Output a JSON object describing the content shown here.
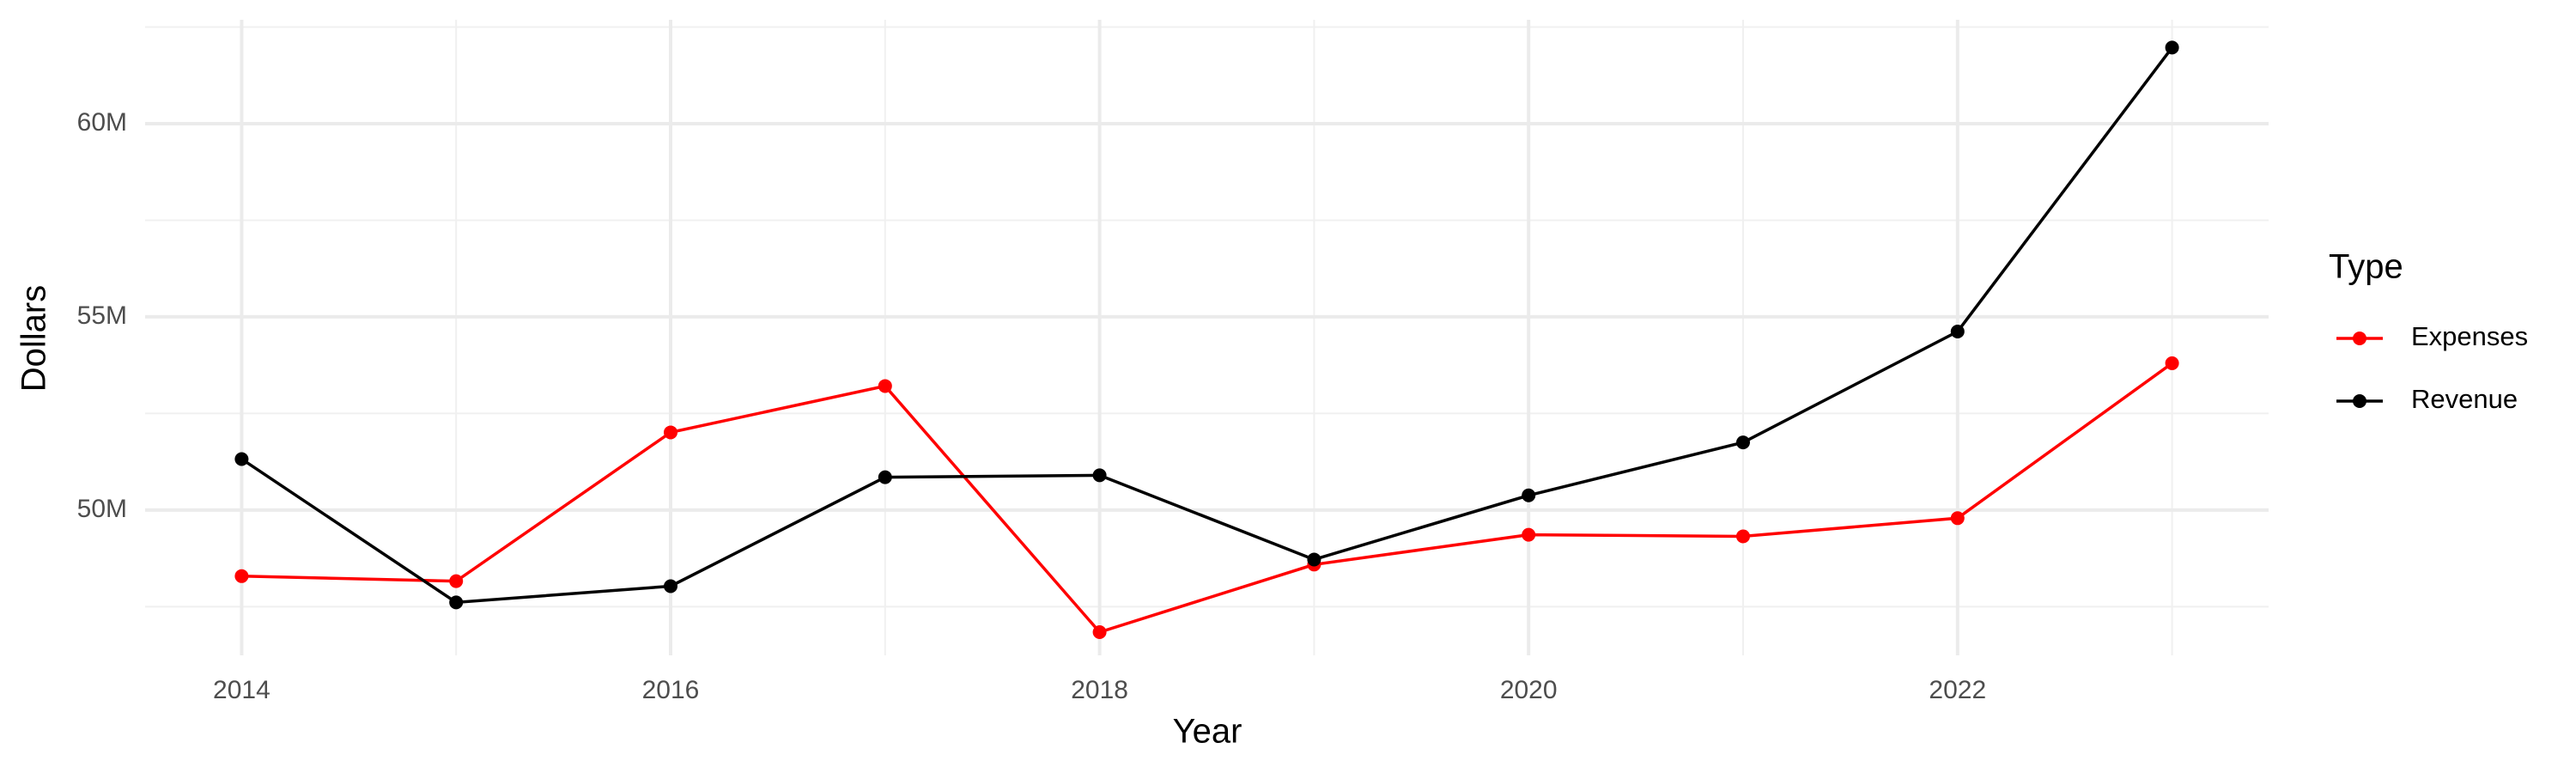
{
  "chart_data": {
    "type": "line",
    "x_label": "Year",
    "y_label": "Dollars",
    "legend_title": "Type",
    "x": [
      2014,
      2015,
      2016,
      2017,
      2018,
      2019,
      2020,
      2021,
      2022,
      2023
    ],
    "series": [
      {
        "name": "Expenses",
        "color": "#ff0000",
        "values": [
          48290000,
          48160000,
          52010000,
          53210000,
          46840000,
          48590000,
          49360000,
          49320000,
          49790000,
          53800000
        ]
      },
      {
        "name": "Revenue",
        "color": "#000000",
        "values": [
          51320000,
          47610000,
          48030000,
          50850000,
          50900000,
          48720000,
          50380000,
          51750000,
          54620000,
          61970000
        ]
      }
    ],
    "xlim": [
      2013.55,
      2023.45
    ],
    "xticks": [
      2014,
      2016,
      2018,
      2020,
      2022
    ],
    "ylim": [
      46240000,
      62690000
    ],
    "yticks": [
      {
        "value": 50000000,
        "label": "50M"
      },
      {
        "value": 55000000,
        "label": "55M"
      },
      {
        "value": 60000000,
        "label": "60M"
      }
    ],
    "grid": true,
    "legend": "right"
  }
}
